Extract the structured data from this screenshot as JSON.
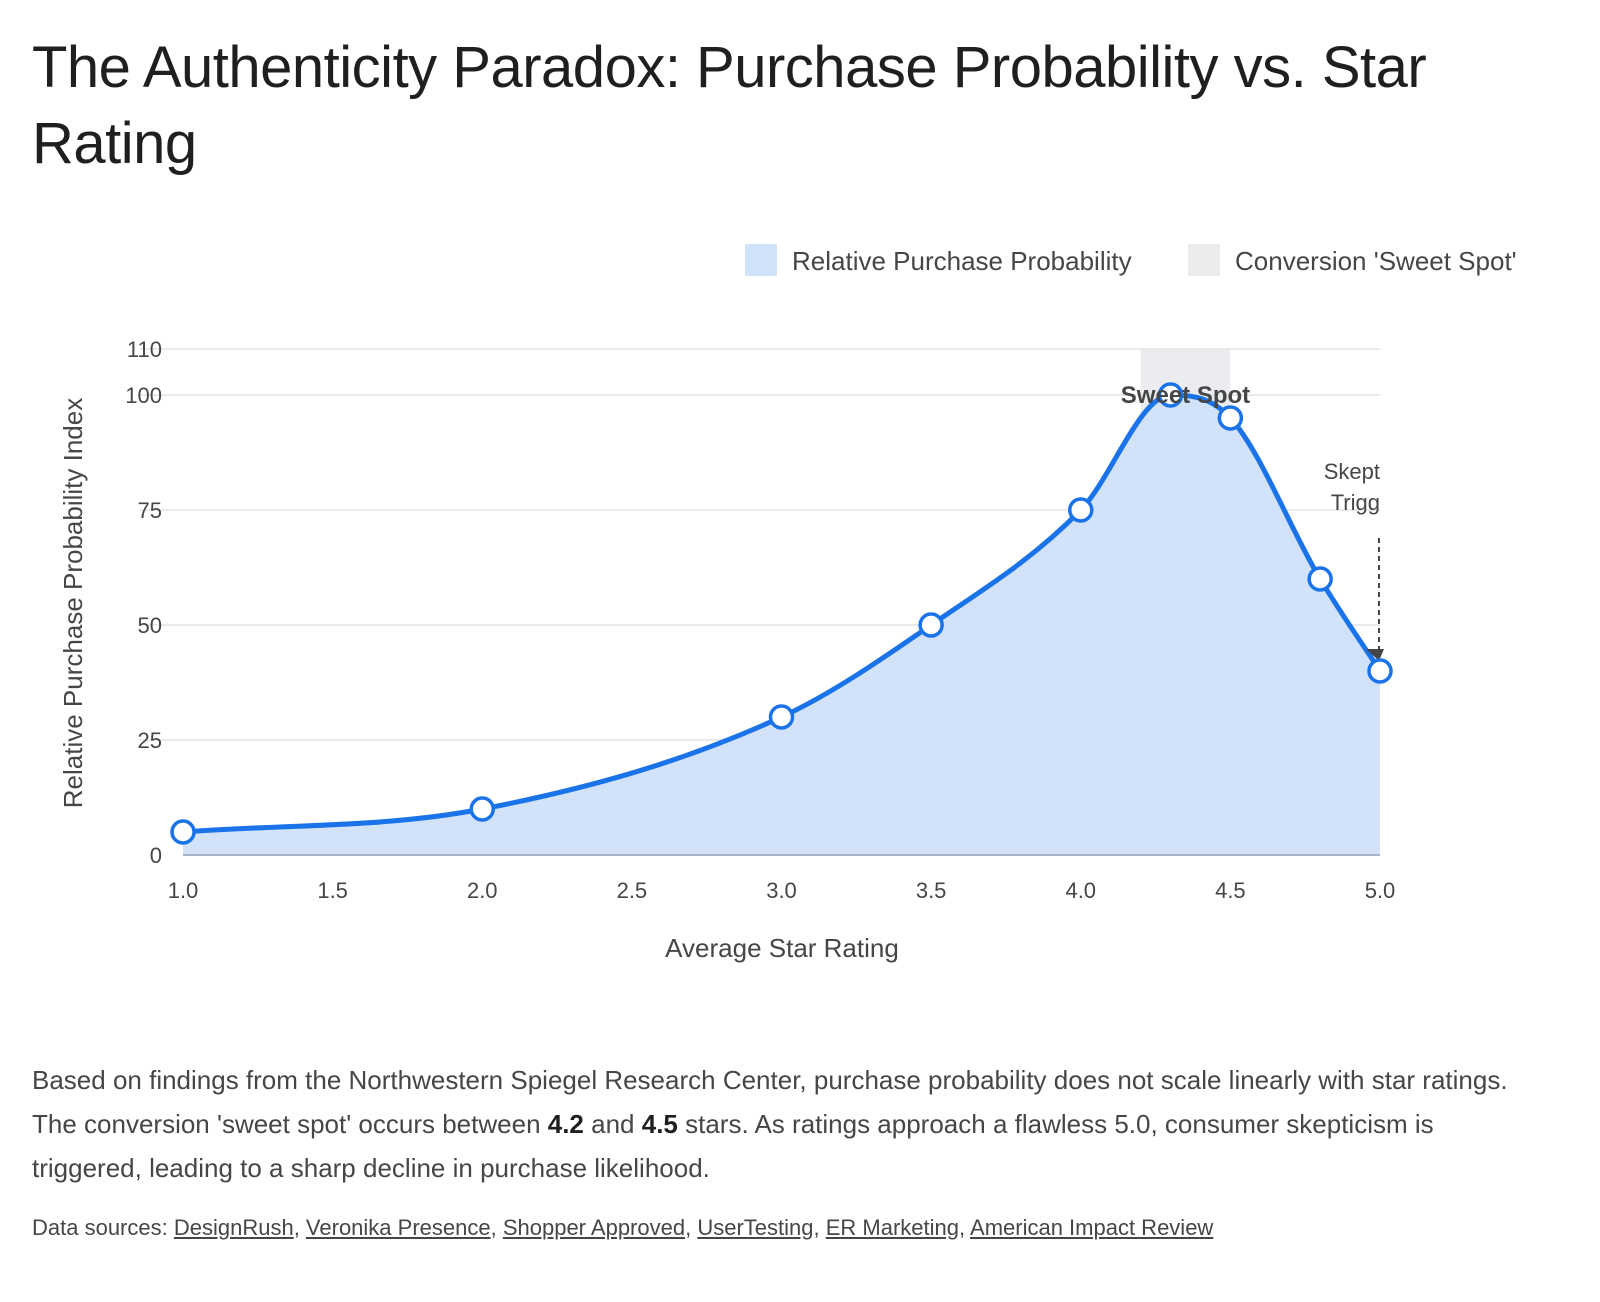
{
  "title": "The Authenticity Paradox: Purchase Probability vs. Star Rating",
  "legend": [
    {
      "label": "Relative Purchase Probability",
      "color": "#d0e2f9"
    },
    {
      "label": "Conversion 'Sweet Spot'",
      "color": "#ececec"
    }
  ],
  "chart_data": {
    "type": "area",
    "title": "",
    "xlabel": "Average Star Rating",
    "ylabel": "Relative Purchase Probability Index",
    "xlim": [
      1.0,
      5.0
    ],
    "ylim": [
      0,
      110
    ],
    "xticks": [
      "1.0",
      "1.5",
      "2.0",
      "2.5",
      "3.0",
      "3.5",
      "4.0",
      "4.5",
      "5.0"
    ],
    "yticks": [
      "0",
      "25",
      "50",
      "75",
      "100",
      "110"
    ],
    "grid": true,
    "legend_position": "top-right",
    "series": [
      {
        "name": "Relative Purchase Probability",
        "line_color": "#1a73e8",
        "fill_color": "#d0e2f9",
        "x": [
          1.0,
          2.0,
          3.0,
          3.5,
          4.0,
          4.3,
          4.5,
          4.8,
          5.0
        ],
        "y": [
          5,
          10,
          30,
          50,
          75,
          100,
          95,
          60,
          40
        ]
      }
    ],
    "sweet_spot": {
      "name": "Conversion 'Sweet Spot'",
      "x_start": 4.2,
      "x_end": 4.5,
      "label": "Sweet Spot",
      "color": "#e4e6ea"
    },
    "callout": {
      "lines": [
        "Skept",
        "Trigg"
      ],
      "x": 5.0,
      "y": 40
    }
  },
  "description": {
    "part1": "Based on findings from the Northwestern Spiegel Research Center, purchase probability does not scale linearly with star ratings. The conversion 'sweet spot' occurs between ",
    "bold1": "4.2",
    "part2": " and ",
    "bold2": "4.5",
    "part3": " stars. As ratings approach a flawless 5.0, consumer skepticism is triggered, leading to a sharp decline in purchase likelihood."
  },
  "sources": {
    "prefix": "Data sources: ",
    "links": [
      "DesignRush",
      "Veronika Presence",
      "Shopper Approved",
      "UserTesting",
      "ER Marketing",
      "American Impact Review"
    ]
  }
}
